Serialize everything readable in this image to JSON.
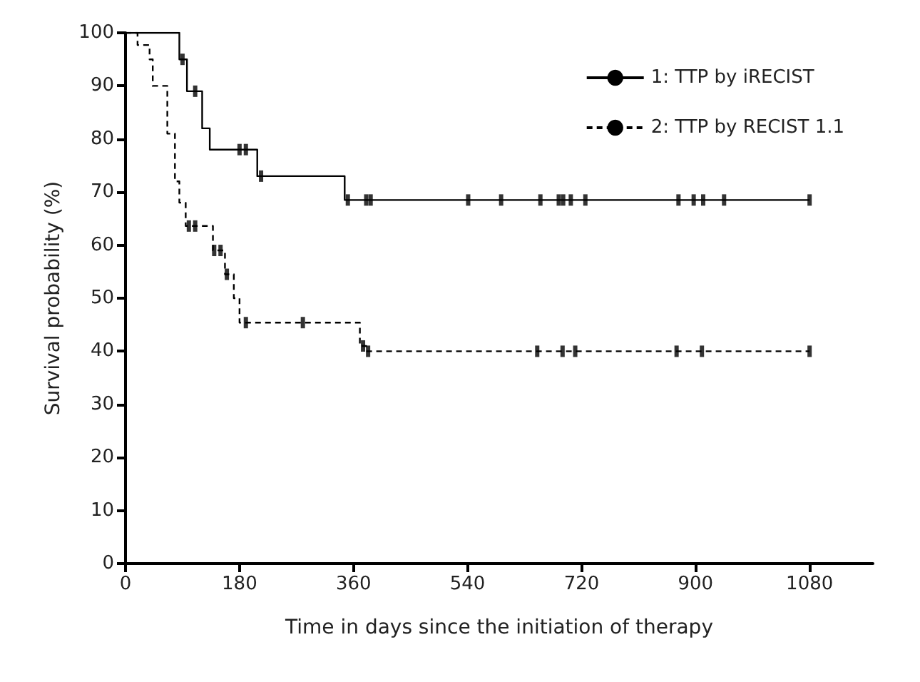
{
  "chart_data": {
    "type": "step",
    "xlabel": "Time in days since the initiation of therapy",
    "ylabel": "Survival probability (%)",
    "xlim": [
      0,
      1180
    ],
    "xticks": [
      0,
      180,
      360,
      540,
      720,
      900,
      1080
    ],
    "ylim": [
      0,
      100
    ],
    "yticks": [
      0,
      10,
      20,
      30,
      40,
      50,
      60,
      70,
      80,
      90,
      100
    ],
    "grid": false,
    "legend": "top right",
    "series": [
      {
        "name": "1: TTP by iRECIST",
        "color": "#000000",
        "line_style": "solid",
        "x": [
          0,
          85,
          97,
          121,
          133,
          208,
          346,
          1080
        ],
        "values": [
          100,
          95,
          89,
          82,
          78,
          73,
          68.5,
          68.5
        ]
      },
      {
        "name": "2: TTP by RECIST 1.1",
        "color": "#000000",
        "line_style": "dashed",
        "x": [
          0,
          19,
          38,
          43,
          66,
          78,
          85,
          95,
          138,
          157,
          171,
          180,
          370,
          380,
          1080
        ],
        "values": [
          100,
          97.7,
          95,
          90,
          81,
          72,
          68,
          63.6,
          59,
          54.5,
          50,
          45.4,
          41,
          40,
          40
        ]
      },
      {
        "type": "scatter",
        "color": "#000000",
        "x": [
          90,
          110,
          180,
          190,
          214,
          351,
          380,
          387,
          541,
          593,
          655,
          684,
          691,
          703,
          726,
          873,
          897,
          912,
          945,
          1080
        ],
        "values": [
          95,
          89,
          78,
          78,
          73,
          68.5,
          68.5,
          68.5,
          68.5,
          68.5,
          68.5,
          68.5,
          68.5,
          68.5,
          68.5,
          68.5,
          68.5,
          68.5,
          68.5,
          68.5
        ]
      },
      {
        "type": "scatter",
        "color": "#000000",
        "x": [
          100,
          110,
          140,
          150,
          160,
          190,
          280,
          375,
          383,
          650,
          690,
          710,
          870,
          910,
          1080
        ],
        "values": [
          63.6,
          63.6,
          59,
          59,
          54.5,
          45.4,
          45.4,
          41,
          40,
          40,
          40,
          40,
          40,
          40,
          40
        ]
      }
    ]
  }
}
